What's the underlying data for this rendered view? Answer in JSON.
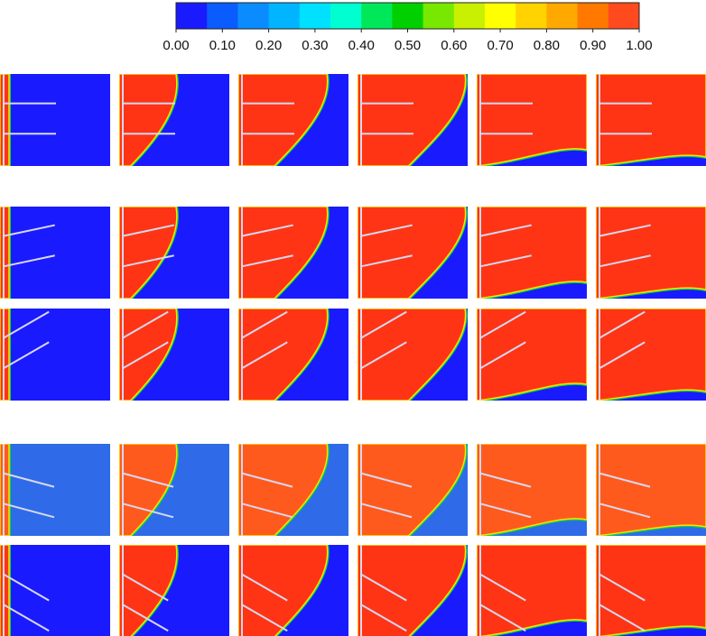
{
  "colorbar": {
    "ticks": [
      "0.00",
      "0.10",
      "0.20",
      "0.30",
      "0.40",
      "0.50",
      "0.60",
      "0.70",
      "0.80",
      "0.90",
      "1.00"
    ],
    "tick_values": [
      0,
      0.1,
      0.2,
      0.3,
      0.4,
      0.5,
      0.6,
      0.7,
      0.8,
      0.9,
      1.0
    ],
    "colors": [
      "#1a1aff",
      "#0a5cff",
      "#0a8cff",
      "#00b4ff",
      "#00e0ff",
      "#00ffd0",
      "#00e85a",
      "#00d000",
      "#78e800",
      "#c8f000",
      "#ffff00",
      "#ffd200",
      "#ffa800",
      "#ff7800",
      "#ff4a1e"
    ]
  },
  "panels": {
    "low_color": "#1a1aff",
    "high_color": "#ff3414",
    "high_color_alt": "#ff5a1e",
    "low_color_alt": "#2f6be8",
    "plate_color": "#d8d8f0",
    "rows": [
      {
        "fin_angle_deg": 0,
        "theme": "normal"
      },
      {
        "fin_angle_deg": -12,
        "theme": "normal"
      },
      {
        "fin_angle_deg": -30,
        "theme": "normal"
      },
      {
        "fin_angle_deg": 15,
        "theme": "alt"
      },
      {
        "fin_angle_deg": 30,
        "theme": "normal"
      }
    ],
    "melt_fraction_per_column": [
      0.05,
      0.35,
      0.6,
      0.75,
      0.88,
      0.96
    ]
  }
}
